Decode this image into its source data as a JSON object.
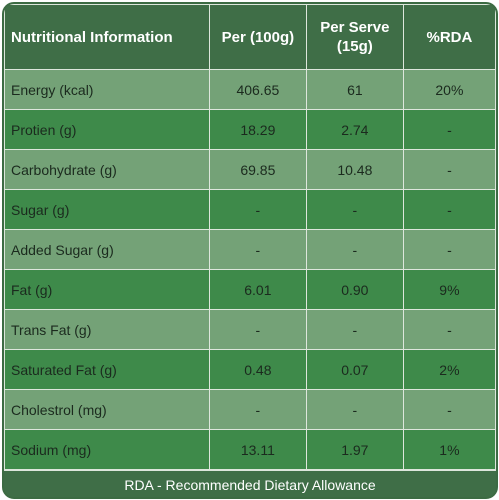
{
  "table": {
    "headers": [
      "Nutritional Information",
      "Per (100g)",
      "Per Serve (15g)",
      "%RDA"
    ],
    "rows": [
      [
        "Energy (kcal)",
        "406.65",
        "61",
        "20%"
      ],
      [
        "Protien (g)",
        "18.29",
        "2.74",
        "-"
      ],
      [
        "Carbohydrate (g)",
        "69.85",
        "10.48",
        "-"
      ],
      [
        "Sugar (g)",
        "-",
        "-",
        "-"
      ],
      [
        "Added Sugar (g)",
        "-",
        "-",
        "-"
      ],
      [
        "Fat (g)",
        "6.01",
        "0.90",
        "9%"
      ],
      [
        "Trans Fat (g)",
        "-",
        "-",
        "-"
      ],
      [
        "Saturated Fat (g)",
        "0.48",
        "0.07",
        "2%"
      ],
      [
        "Cholestrol (mg)",
        "-",
        "-",
        "-"
      ],
      [
        "Sodium (mg)",
        "13.11",
        "1.97",
        "1%"
      ]
    ]
  },
  "footer": "RDA - Recommended Dietary Allowance",
  "colors": {
    "header_bg": "#3f6e47",
    "row_light": "#74a277",
    "row_dark": "#3e8a4a",
    "border": "#dde6dc"
  }
}
